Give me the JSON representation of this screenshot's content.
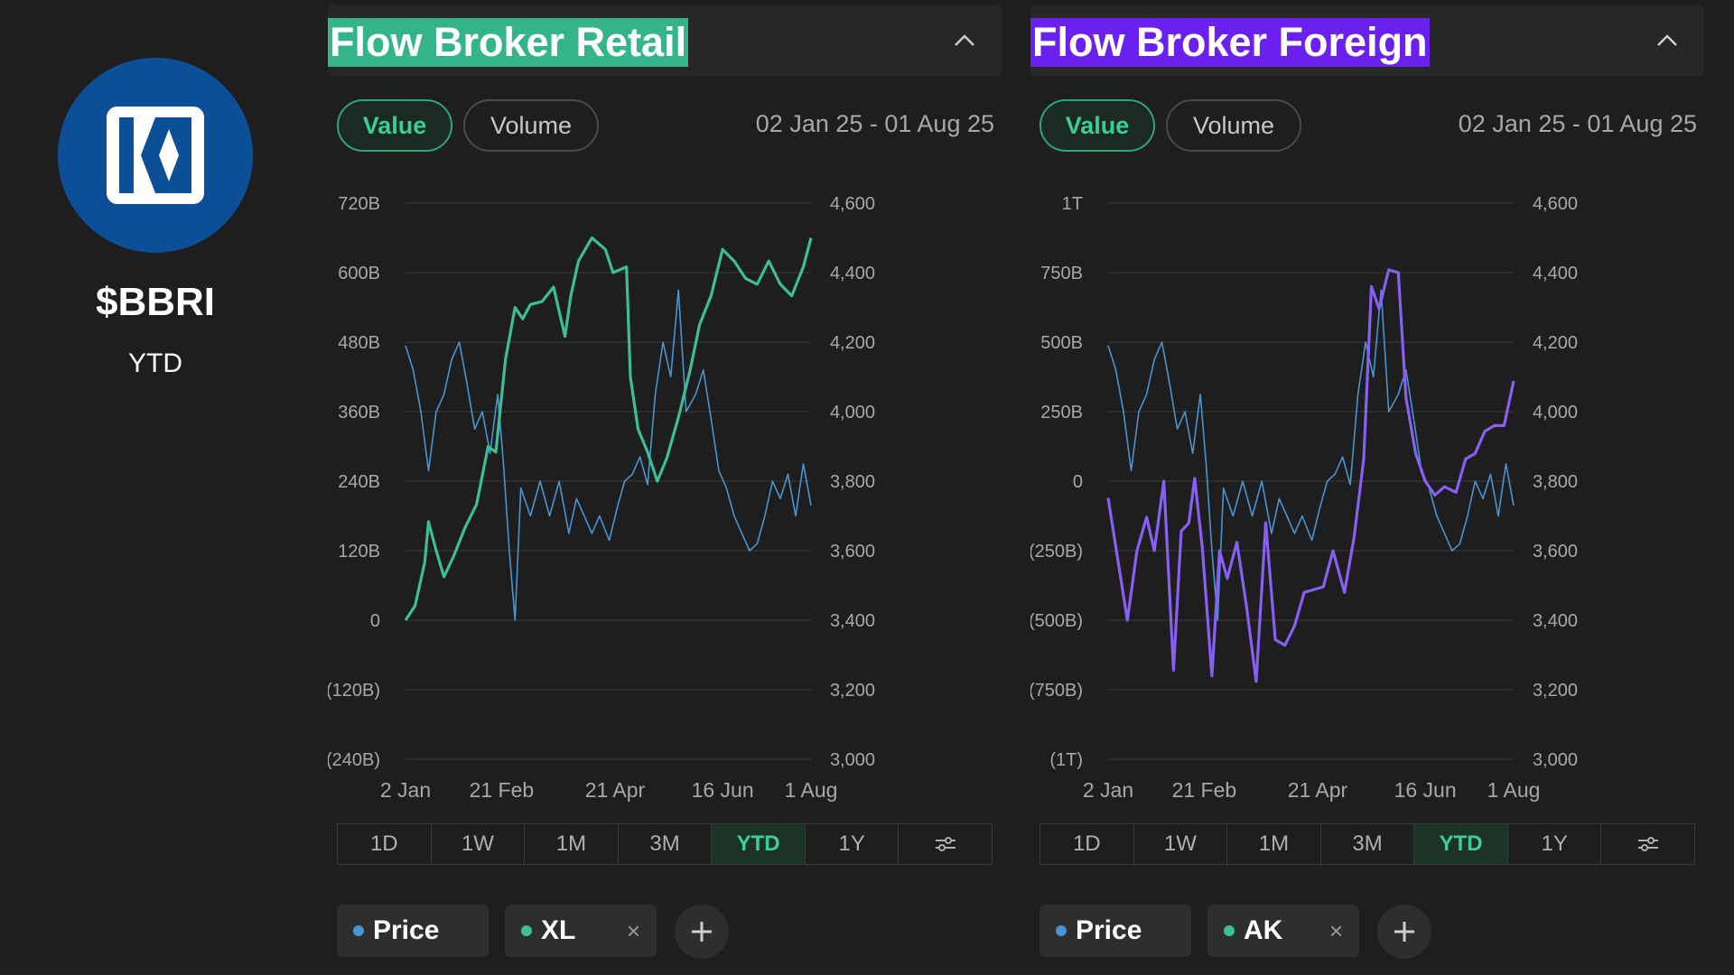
{
  "stock": {
    "ticker": "$BBRI",
    "period": "YTD"
  },
  "icons": {
    "logo": "bri-logo",
    "collapse": "chevron-up-icon",
    "settings": "sliders-icon",
    "add": "plus-icon",
    "remove": "close-icon"
  },
  "colors": {
    "retail": "#3dbd98",
    "foreign": "#8660f2",
    "price": "#4a94d0",
    "retail_title_bg": "#35b48a",
    "foreign_title_bg": "#6a20ee",
    "active_green": "#3ccf95"
  },
  "panels": [
    {
      "title": "Flow Broker Retail",
      "toggle_value": "Value",
      "toggle_volume": "Volume",
      "date_range": "02 Jan 25 - 01 Aug 25",
      "ranges": [
        "1D",
        "1W",
        "1M",
        "3M",
        "YTD",
        "1Y"
      ],
      "active_range": "YTD",
      "chips": [
        {
          "label": "Price",
          "removable": false
        },
        {
          "label": "XL",
          "removable": true
        }
      ],
      "remove_symbol": "×"
    },
    {
      "title": "Flow Broker Foreign",
      "toggle_value": "Value",
      "toggle_volume": "Volume",
      "date_range": "02 Jan 25 - 01 Aug 25",
      "ranges": [
        "1D",
        "1W",
        "1M",
        "3M",
        "YTD",
        "1Y"
      ],
      "active_range": "YTD",
      "chips": [
        {
          "label": "Price",
          "removable": false
        },
        {
          "label": "AK",
          "removable": true
        }
      ],
      "remove_symbol": "×"
    }
  ],
  "chart_data": [
    {
      "type": "line",
      "title": "Flow Broker Retail",
      "x_ticks": [
        "2 Jan",
        "21 Feb",
        "21 Apr",
        "16 Jun",
        "1 Aug"
      ],
      "y_left_ticks": [
        "720B",
        "600B",
        "480B",
        "360B",
        "240B",
        "120B",
        "0",
        "(120B)",
        "(240B)"
      ],
      "y_left_range_billion": [
        -240,
        720
      ],
      "y_right_ticks": [
        "4,600",
        "4,400",
        "4,200",
        "4,000",
        "3,800",
        "3,600",
        "3,400",
        "3,200",
        "3,000"
      ],
      "y_right_range": [
        3000,
        4600
      ],
      "grid": true,
      "series": [
        {
          "name": "XL",
          "axis": "left",
          "unit": "billion IDR",
          "points": [
            [
              "2025-01-02",
              0
            ],
            [
              "2025-01-07",
              25
            ],
            [
              "2025-01-12",
              100
            ],
            [
              "2025-01-14",
              170
            ],
            [
              "2025-01-18",
              120
            ],
            [
              "2025-01-22",
              75
            ],
            [
              "2025-01-27",
              110
            ],
            [
              "2025-02-02",
              160
            ],
            [
              "2025-02-08",
              200
            ],
            [
              "2025-02-14",
              300
            ],
            [
              "2025-02-18",
              290
            ],
            [
              "2025-02-23",
              450
            ],
            [
              "2025-02-28",
              540
            ],
            [
              "2025-03-04",
              520
            ],
            [
              "2025-03-08",
              545
            ],
            [
              "2025-03-14",
              550
            ],
            [
              "2025-03-20",
              575
            ],
            [
              "2025-03-26",
              490
            ],
            [
              "2025-03-29",
              560
            ],
            [
              "2025-04-02",
              620
            ],
            [
              "2025-04-09",
              660
            ],
            [
              "2025-04-16",
              640
            ],
            [
              "2025-04-20",
              600
            ],
            [
              "2025-04-27",
              610
            ],
            [
              "2025-04-29",
              420
            ],
            [
              "2025-05-03",
              330
            ],
            [
              "2025-05-08",
              290
            ],
            [
              "2025-05-13",
              240
            ],
            [
              "2025-05-18",
              280
            ],
            [
              "2025-05-24",
              350
            ],
            [
              "2025-05-30",
              430
            ],
            [
              "2025-06-04",
              510
            ],
            [
              "2025-06-10",
              560
            ],
            [
              "2025-06-16",
              640
            ],
            [
              "2025-06-22",
              620
            ],
            [
              "2025-06-28",
              590
            ],
            [
              "2025-07-04",
              580
            ],
            [
              "2025-07-10",
              620
            ],
            [
              "2025-07-16",
              580
            ],
            [
              "2025-07-22",
              560
            ],
            [
              "2025-07-28",
              610
            ],
            [
              "2025-08-01",
              660
            ]
          ]
        },
        {
          "name": "Price",
          "axis": "right",
          "unit": "IDR",
          "points": [
            [
              "2025-01-02",
              4190
            ],
            [
              "2025-01-06",
              4120
            ],
            [
              "2025-01-10",
              4000
            ],
            [
              "2025-01-14",
              3830
            ],
            [
              "2025-01-18",
              4000
            ],
            [
              "2025-01-22",
              4050
            ],
            [
              "2025-01-26",
              4150
            ],
            [
              "2025-01-30",
              4200
            ],
            [
              "2025-02-03",
              4080
            ],
            [
              "2025-02-07",
              3950
            ],
            [
              "2025-02-11",
              4000
            ],
            [
              "2025-02-15",
              3880
            ],
            [
              "2025-02-19",
              4050
            ],
            [
              "2025-02-22",
              3850
            ],
            [
              "2025-02-25",
              3600
            ],
            [
              "2025-02-28",
              3400
            ],
            [
              "2025-03-03",
              3780
            ],
            [
              "2025-03-08",
              3700
            ],
            [
              "2025-03-13",
              3800
            ],
            [
              "2025-03-18",
              3700
            ],
            [
              "2025-03-23",
              3800
            ],
            [
              "2025-03-28",
              3650
            ],
            [
              "2025-04-01",
              3750
            ],
            [
              "2025-04-05",
              3700
            ],
            [
              "2025-04-09",
              3650
            ],
            [
              "2025-04-13",
              3700
            ],
            [
              "2025-04-18",
              3630
            ],
            [
              "2025-04-22",
              3720
            ],
            [
              "2025-04-26",
              3800
            ],
            [
              "2025-04-30",
              3820
            ],
            [
              "2025-05-04",
              3870
            ],
            [
              "2025-05-08",
              3790
            ],
            [
              "2025-05-12",
              4050
            ],
            [
              "2025-05-16",
              4200
            ],
            [
              "2025-05-20",
              4100
            ],
            [
              "2025-05-24",
              4350
            ],
            [
              "2025-05-28",
              4000
            ],
            [
              "2025-06-02",
              4050
            ],
            [
              "2025-06-06",
              4120
            ],
            [
              "2025-06-10",
              3980
            ],
            [
              "2025-06-14",
              3830
            ],
            [
              "2025-06-18",
              3780
            ],
            [
              "2025-06-22",
              3700
            ],
            [
              "2025-06-26",
              3650
            ],
            [
              "2025-06-30",
              3600
            ],
            [
              "2025-07-04",
              3620
            ],
            [
              "2025-07-08",
              3700
            ],
            [
              "2025-07-12",
              3800
            ],
            [
              "2025-07-16",
              3750
            ],
            [
              "2025-07-20",
              3820
            ],
            [
              "2025-07-24",
              3700
            ],
            [
              "2025-07-28",
              3850
            ],
            [
              "2025-08-01",
              3730
            ]
          ]
        }
      ]
    },
    {
      "type": "line",
      "title": "Flow Broker Foreign",
      "x_ticks": [
        "2 Jan",
        "21 Feb",
        "21 Apr",
        "16 Jun",
        "1 Aug"
      ],
      "y_left_ticks": [
        "1T",
        "750B",
        "500B",
        "250B",
        "0",
        "(250B)",
        "(500B)",
        "(750B)",
        "(1T)"
      ],
      "y_left_range_billion": [
        -1000,
        1000
      ],
      "y_right_ticks": [
        "4,600",
        "4,400",
        "4,200",
        "4,000",
        "3,800",
        "3,600",
        "3,400",
        "3,200",
        "3,000"
      ],
      "y_right_range": [
        3000,
        4600
      ],
      "grid": true,
      "series": [
        {
          "name": "AK",
          "axis": "left",
          "unit": "billion IDR",
          "points": [
            [
              "2025-01-02",
              -60
            ],
            [
              "2025-01-07",
              -280
            ],
            [
              "2025-01-12",
              -500
            ],
            [
              "2025-01-17",
              -250
            ],
            [
              "2025-01-22",
              -130
            ],
            [
              "2025-01-26",
              -250
            ],
            [
              "2025-01-31",
              0
            ],
            [
              "2025-02-05",
              -680
            ],
            [
              "2025-02-09",
              -180
            ],
            [
              "2025-02-13",
              -150
            ],
            [
              "2025-02-16",
              10
            ],
            [
              "2025-02-20",
              -240
            ],
            [
              "2025-02-25",
              -700
            ],
            [
              "2025-03-01",
              -250
            ],
            [
              "2025-03-05",
              -350
            ],
            [
              "2025-03-10",
              -220
            ],
            [
              "2025-03-15",
              -450
            ],
            [
              "2025-03-20",
              -720
            ],
            [
              "2025-03-25",
              -150
            ],
            [
              "2025-03-30",
              -570
            ],
            [
              "2025-04-04",
              -590
            ],
            [
              "2025-04-09",
              -520
            ],
            [
              "2025-04-14",
              -400
            ],
            [
              "2025-04-19",
              -390
            ],
            [
              "2025-04-24",
              -380
            ],
            [
              "2025-04-29",
              -250
            ],
            [
              "2025-05-05",
              -400
            ],
            [
              "2025-05-10",
              -200
            ],
            [
              "2025-05-15",
              80
            ],
            [
              "2025-05-19",
              700
            ],
            [
              "2025-05-23",
              620
            ],
            [
              "2025-05-28",
              760
            ],
            [
              "2025-06-02",
              750
            ],
            [
              "2025-06-06",
              300
            ],
            [
              "2025-06-11",
              100
            ],
            [
              "2025-06-16",
              0
            ],
            [
              "2025-06-21",
              -50
            ],
            [
              "2025-06-26",
              -20
            ],
            [
              "2025-07-02",
              -40
            ],
            [
              "2025-07-07",
              80
            ],
            [
              "2025-07-12",
              100
            ],
            [
              "2025-07-17",
              180
            ],
            [
              "2025-07-22",
              200
            ],
            [
              "2025-07-27",
              200
            ],
            [
              "2025-08-01",
              360
            ]
          ]
        },
        {
          "name": "Price",
          "axis": "right",
          "unit": "IDR",
          "points": [
            [
              "2025-01-02",
              4190
            ],
            [
              "2025-01-06",
              4120
            ],
            [
              "2025-01-10",
              4000
            ],
            [
              "2025-01-14",
              3830
            ],
            [
              "2025-01-18",
              4000
            ],
            [
              "2025-01-22",
              4050
            ],
            [
              "2025-01-26",
              4150
            ],
            [
              "2025-01-30",
              4200
            ],
            [
              "2025-02-03",
              4080
            ],
            [
              "2025-02-07",
              3950
            ],
            [
              "2025-02-11",
              4000
            ],
            [
              "2025-02-15",
              3880
            ],
            [
              "2025-02-19",
              4050
            ],
            [
              "2025-02-22",
              3850
            ],
            [
              "2025-02-25",
              3600
            ],
            [
              "2025-02-28",
              3400
            ],
            [
              "2025-03-03",
              3780
            ],
            [
              "2025-03-08",
              3700
            ],
            [
              "2025-03-13",
              3800
            ],
            [
              "2025-03-18",
              3700
            ],
            [
              "2025-03-23",
              3800
            ],
            [
              "2025-03-28",
              3650
            ],
            [
              "2025-04-01",
              3750
            ],
            [
              "2025-04-05",
              3700
            ],
            [
              "2025-04-09",
              3650
            ],
            [
              "2025-04-13",
              3700
            ],
            [
              "2025-04-18",
              3630
            ],
            [
              "2025-04-22",
              3720
            ],
            [
              "2025-04-26",
              3800
            ],
            [
              "2025-04-30",
              3820
            ],
            [
              "2025-05-04",
              3870
            ],
            [
              "2025-05-08",
              3790
            ],
            [
              "2025-05-12",
              4050
            ],
            [
              "2025-05-16",
              4200
            ],
            [
              "2025-05-20",
              4100
            ],
            [
              "2025-05-24",
              4350
            ],
            [
              "2025-05-28",
              4000
            ],
            [
              "2025-06-02",
              4050
            ],
            [
              "2025-06-06",
              4120
            ],
            [
              "2025-06-10",
              3980
            ],
            [
              "2025-06-14",
              3830
            ],
            [
              "2025-06-18",
              3780
            ],
            [
              "2025-06-22",
              3700
            ],
            [
              "2025-06-26",
              3650
            ],
            [
              "2025-06-30",
              3600
            ],
            [
              "2025-07-04",
              3620
            ],
            [
              "2025-07-08",
              3700
            ],
            [
              "2025-07-12",
              3800
            ],
            [
              "2025-07-16",
              3750
            ],
            [
              "2025-07-20",
              3820
            ],
            [
              "2025-07-24",
              3700
            ],
            [
              "2025-07-28",
              3850
            ],
            [
              "2025-08-01",
              3730
            ]
          ]
        }
      ]
    }
  ]
}
